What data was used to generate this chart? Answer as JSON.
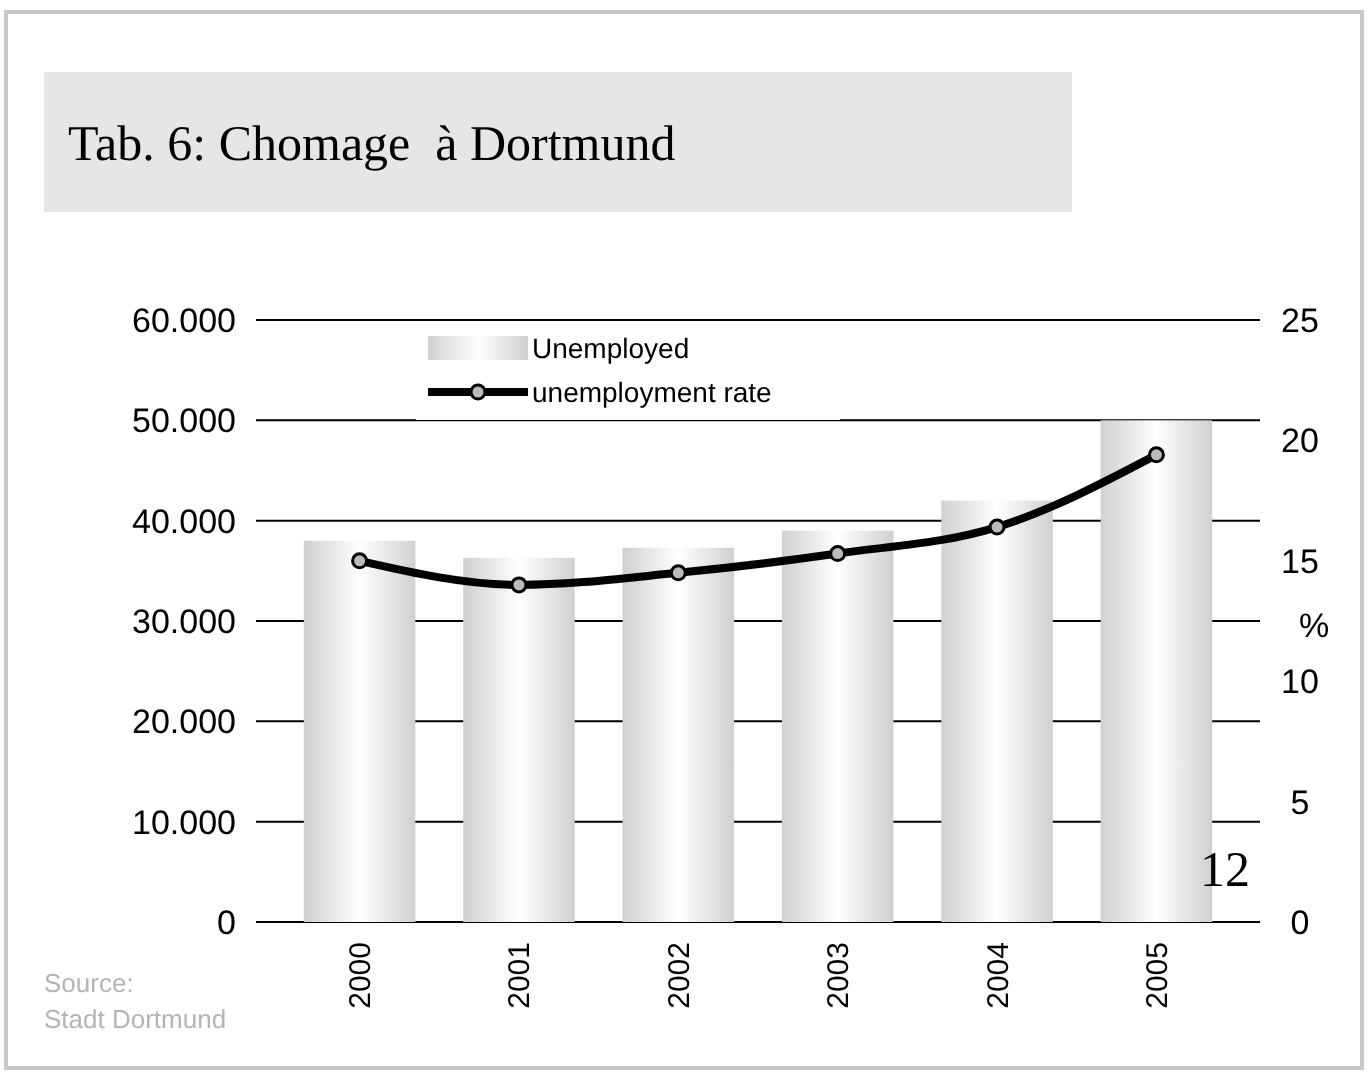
{
  "chart_data": {
    "type": "bar",
    "title": "Tab. 6: Chomage  à Dortmund",
    "y2label": "%",
    "categories": [
      "2000",
      "2001",
      "2002",
      "2003",
      "2004",
      "2005"
    ],
    "series": [
      {
        "name": "Unemployed",
        "color": "#d0d0d0",
        "values": [
          38000,
          36300,
          37300,
          39000,
          42000,
          50000
        ]
      },
      {
        "name": "unemployment rate",
        "type": "line",
        "axis": "y2",
        "color": "#000000",
        "values": [
          15.0,
          14.0,
          14.5,
          15.3,
          16.4,
          19.4
        ]
      }
    ],
    "ylim": [
      0,
      60000
    ],
    "yticks": [
      {
        "value": 0,
        "label": "0"
      },
      {
        "value": 10000,
        "label": "10.000"
      },
      {
        "value": 20000,
        "label": "20.000"
      },
      {
        "value": 30000,
        "label": "30.000"
      },
      {
        "value": 40000,
        "label": "40.000"
      },
      {
        "value": 50000,
        "label": "50.000"
      },
      {
        "value": 60000,
        "label": "60.000"
      }
    ],
    "y2lim": [
      0,
      25
    ],
    "y2ticks": [
      0,
      5,
      10,
      15,
      20,
      25
    ],
    "grid": "y",
    "legend": "top",
    "marker": "circle",
    "line_style": "solid",
    "annotations": [
      "Source:\nStadt Dortmund",
      "12"
    ]
  }
}
